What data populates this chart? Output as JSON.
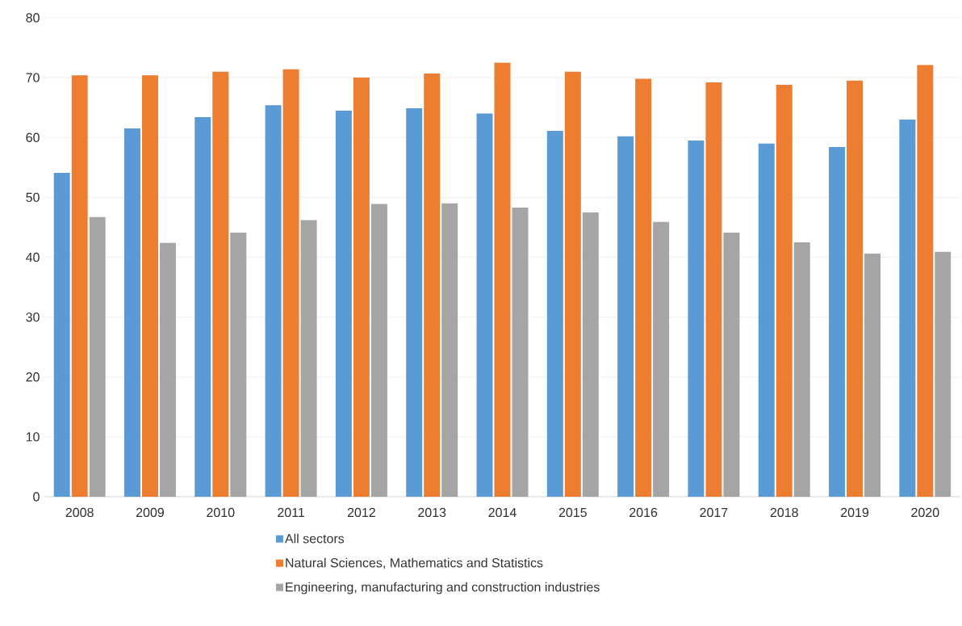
{
  "chart_data": {
    "type": "bar",
    "categories": [
      "2008",
      "2009",
      "2010",
      "2011",
      "2012",
      "2013",
      "2014",
      "2015",
      "2016",
      "2017",
      "2018",
      "2019",
      "2020"
    ],
    "series": [
      {
        "name": "All sectors",
        "color": "#5b9bd5",
        "values": [
          54.1,
          61.5,
          63.4,
          65.4,
          64.5,
          64.9,
          64.0,
          61.1,
          60.2,
          59.5,
          59.0,
          58.4,
          63.0
        ]
      },
      {
        "name": "Natural Sciences, Mathematics and Statistics",
        "color": "#ed7d31",
        "values": [
          70.4,
          70.4,
          71.0,
          71.4,
          70.0,
          70.7,
          72.5,
          71.0,
          69.8,
          69.2,
          68.8,
          69.5,
          72.1
        ]
      },
      {
        "name": "Engineering, manufacturing and construction industries",
        "color": "#a5a5a5",
        "values": [
          46.7,
          42.4,
          44.1,
          46.2,
          48.9,
          49.0,
          48.3,
          47.5,
          45.9,
          44.1,
          42.5,
          40.6,
          40.9
        ]
      }
    ],
    "ylim": [
      0,
      80
    ],
    "yticks": [
      0,
      10,
      20,
      30,
      40,
      50,
      60,
      70,
      80
    ],
    "grid": "y",
    "legend": "bottom"
  }
}
